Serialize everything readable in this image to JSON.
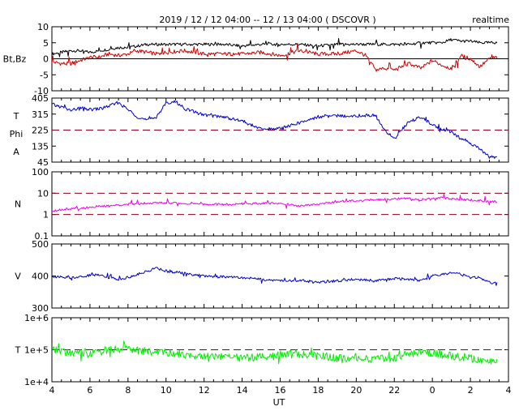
{
  "chart_data": {
    "type": "line",
    "title": "2019 / 12 / 12   04:00 -- 12 / 13   04:00 ( DSCOVR )",
    "badge": "realtime",
    "xlabel": "UT",
    "x_range_hours": [
      4,
      28
    ],
    "x_tick_labels": [
      "4",
      "6",
      "8",
      "10",
      "12",
      "14",
      "16",
      "18",
      "20",
      "22",
      "0",
      "2",
      "4"
    ],
    "data_end_hour": 27.4,
    "panels": [
      {
        "id": "bfield",
        "ylabel": "Bt,Bz",
        "scale": "linear",
        "ylim": [
          -10,
          10
        ],
        "tick_labels": [
          "10",
          "5",
          "0",
          "-5",
          "-10"
        ],
        "reference_lines": [
          0
        ],
        "reference_style": "solid",
        "series": [
          {
            "key": "Bt",
            "color": "#000000",
            "x": [
              4.0,
              4.5,
              5.0,
              5.5,
              6.0,
              6.5,
              7.0,
              7.5,
              8.0,
              8.5,
              9.0,
              9.5,
              10.0,
              11.0,
              12.0,
              13.0,
              14.0,
              15.0,
              16.0,
              17.0,
              18.0,
              19.0,
              20.0,
              21.0,
              22.0,
              22.8,
              23.4,
              24.0,
              24.5,
              25.0,
              25.5,
              26.0,
              26.5,
              27.0,
              27.4
            ],
            "y": [
              1.5,
              2.0,
              2.5,
              2.5,
              2.0,
              2.5,
              3.0,
              3.5,
              3.5,
              4.0,
              4.5,
              4.5,
              4.5,
              4.5,
              4.5,
              4.5,
              4.0,
              4.5,
              4.5,
              4.5,
              4.0,
              4.5,
              4.5,
              4.5,
              4.5,
              4.5,
              5.0,
              5.0,
              5.0,
              6.0,
              5.5,
              5.5,
              5.0,
              5.0,
              5.0
            ]
          },
          {
            "key": "Bz",
            "color": "#cc0000",
            "x": [
              4.0,
              4.5,
              5.0,
              5.5,
              6.0,
              6.5,
              7.0,
              7.5,
              8.0,
              8.5,
              9.0,
              9.5,
              10.0,
              11.0,
              12.0,
              13.0,
              14.0,
              15.0,
              16.0,
              17.0,
              18.0,
              19.0,
              20.0,
              20.5,
              21.0,
              21.5,
              22.0,
              22.8,
              23.4,
              24.0,
              24.5,
              25.0,
              25.5,
              26.0,
              26.5,
              27.0,
              27.4
            ],
            "y": [
              -1.0,
              -1.5,
              -1.5,
              -0.5,
              0.5,
              0.5,
              1.5,
              1.0,
              1.5,
              2.5,
              2.0,
              1.5,
              2.0,
              2.5,
              1.5,
              1.5,
              1.5,
              2.0,
              1.0,
              2.5,
              1.5,
              1.5,
              2.5,
              1.0,
              -3.5,
              -3.0,
              -3.5,
              -1.5,
              -3.0,
              -0.5,
              -2.0,
              -3.0,
              1.0,
              0.0,
              -2.5,
              0.0,
              0.5
            ]
          }
        ]
      },
      {
        "id": "angles",
        "ylabel_lines": [
          "T",
          "Phi",
          "A"
        ],
        "scale": "linear",
        "ylim": [
          45,
          405
        ],
        "tick_labels": [
          "405",
          "315",
          "225",
          "135",
          "45"
        ],
        "reference_lines": [
          225
        ],
        "reference_style": "dashed",
        "series": [
          {
            "key": "Phi",
            "color": "#0000cc",
            "x": [
              4.0,
              4.5,
              5.0,
              5.5,
              6.0,
              6.5,
              7.0,
              7.5,
              8.0,
              8.5,
              9.0,
              9.5,
              10.0,
              10.5,
              11.0,
              12.0,
              13.0,
              14.0,
              15.0,
              16.0,
              17.0,
              18.0,
              19.0,
              20.0,
              21.0,
              21.5,
              22.0,
              22.8,
              23.4,
              24.0,
              24.5,
              25.0,
              25.5,
              26.0,
              26.5,
              27.0,
              27.4
            ],
            "y": [
              370,
              355,
              335,
              350,
              340,
              345,
              360,
              380,
              340,
              300,
              280,
              300,
              375,
              385,
              345,
              310,
              300,
              275,
              230,
              235,
              265,
              300,
              305,
              305,
              310,
              220,
              180,
              275,
              300,
              255,
              230,
              215,
              175,
              150,
              120,
              75,
              70
            ]
          }
        ]
      },
      {
        "id": "density",
        "ylabel": "N",
        "scale": "log",
        "ylim": [
          0.1,
          100
        ],
        "tick_labels": [
          "100",
          "10",
          "1",
          "0.1"
        ],
        "reference_lines": [
          1,
          10
        ],
        "reference_style": "dashed",
        "series": [
          {
            "key": "N",
            "color": "#ee00ee",
            "x": [
              4.0,
              4.5,
              5.0,
              5.5,
              6.0,
              6.5,
              7.0,
              7.5,
              8.0,
              8.5,
              9.0,
              9.5,
              10.0,
              11.0,
              12.0,
              13.0,
              14.0,
              15.0,
              16.0,
              17.0,
              18.0,
              19.0,
              20.0,
              21.0,
              22.0,
              22.8,
              23.4,
              24.0,
              24.5,
              25.0,
              25.5,
              26.0,
              26.5,
              27.0,
              27.4
            ],
            "y": [
              1.5,
              1.7,
              1.8,
              2.0,
              2.2,
              2.4,
              2.5,
              2.8,
              3.0,
              3.2,
              3.5,
              3.5,
              3.6,
              3.3,
              3.0,
              3.0,
              3.2,
              3.3,
              3.4,
              2.5,
              3.0,
              4.0,
              4.5,
              5.0,
              5.5,
              5.5,
              5.0,
              5.5,
              6.0,
              5.5,
              5.0,
              4.8,
              4.5,
              4.2,
              4.0
            ]
          }
        ]
      },
      {
        "id": "speed",
        "ylabel": "V",
        "scale": "linear",
        "ylim": [
          300,
          500
        ],
        "tick_labels": [
          "500",
          "400",
          "300"
        ],
        "reference_lines": [],
        "reference_style": "none",
        "series": [
          {
            "key": "V",
            "color": "#0000cc",
            "x": [
              4.0,
              4.5,
              5.0,
              5.5,
              6.0,
              6.5,
              7.0,
              7.5,
              8.0,
              8.5,
              9.0,
              9.5,
              10.0,
              10.5,
              11.0,
              12.0,
              13.0,
              14.0,
              15.0,
              16.0,
              17.0,
              18.0,
              19.0,
              20.0,
              21.0,
              22.0,
              22.8,
              23.4,
              24.0,
              24.5,
              25.0,
              25.5,
              26.0,
              26.5,
              27.0,
              27.4
            ],
            "y": [
              400,
              395,
              395,
              398,
              402,
              405,
              395,
              390,
              395,
              405,
              415,
              425,
              415,
              412,
              408,
              400,
              398,
              395,
              390,
              385,
              385,
              380,
              385,
              390,
              385,
              392,
              390,
              385,
              400,
              405,
              410,
              405,
              395,
              395,
              380,
              378
            ]
          }
        ]
      },
      {
        "id": "temperature",
        "ylabel": "T",
        "scale": "log",
        "ylim": [
          10000,
          1000000
        ],
        "tick_labels": [
          "1e+6",
          "1e+5",
          "1e+4"
        ],
        "reference_lines": [
          100000
        ],
        "reference_style": "dashed",
        "series": [
          {
            "key": "T",
            "color": "#00ee00",
            "x": [
              4.0,
              4.5,
              5.0,
              5.5,
              6.0,
              6.5,
              7.0,
              7.5,
              8.0,
              8.5,
              9.0,
              9.5,
              10.0,
              11.0,
              12.0,
              13.0,
              14.0,
              15.0,
              16.0,
              17.0,
              18.0,
              19.0,
              20.0,
              21.0,
              22.0,
              22.8,
              23.4,
              24.0,
              24.5,
              25.0,
              25.5,
              26.0,
              26.5,
              27.0,
              27.4
            ],
            "y": [
              95000,
              90000,
              75000,
              85000,
              80000,
              85000,
              100000,
              110000,
              120000,
              95000,
              90000,
              85000,
              80000,
              70000,
              65000,
              60000,
              55000,
              60000,
              70000,
              75000,
              65000,
              55000,
              60000,
              50000,
              55000,
              75000,
              90000,
              80000,
              70000,
              65000,
              60000,
              55000,
              50000,
              45000,
              40000
            ]
          }
        ]
      }
    ]
  }
}
